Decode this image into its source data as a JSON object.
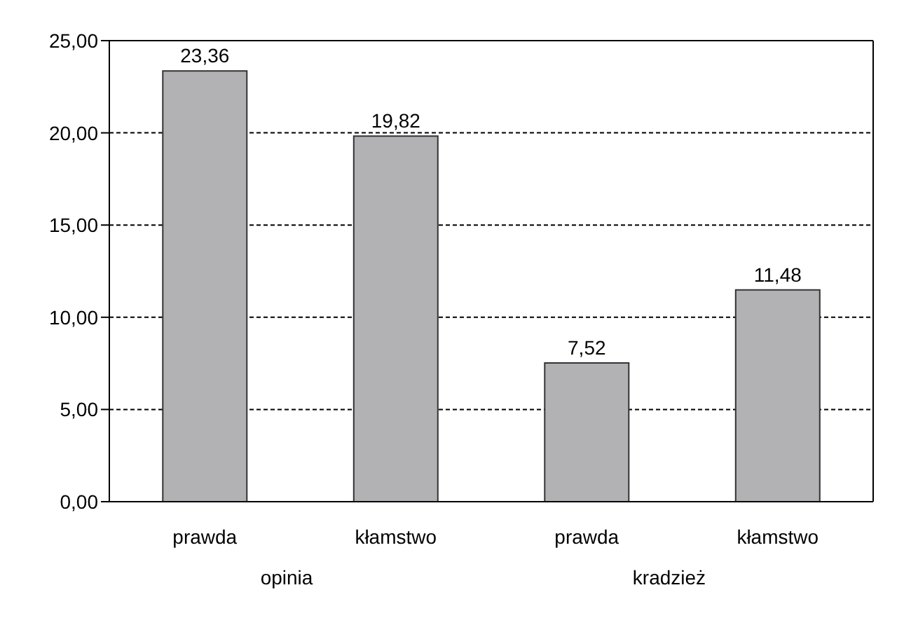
{
  "chart_data": {
    "type": "bar",
    "categories": [
      "prawda",
      "kłamstwo",
      "prawda",
      "kłamstwo"
    ],
    "values": [
      23.36,
      19.82,
      7.52,
      11.48
    ],
    "value_labels": [
      "23,36",
      "19,82",
      "7,52",
      "11,48"
    ],
    "color": "#b2b2b4",
    "ylim": [
      0,
      25
    ],
    "yticks": [
      {
        "value": 0,
        "label": "0,00"
      },
      {
        "value": 5,
        "label": "5,00"
      },
      {
        "value": 10,
        "label": "10,00"
      },
      {
        "value": 15,
        "label": "15,00"
      },
      {
        "value": 20,
        "label": "20,00"
      },
      {
        "value": 25,
        "label": "25,00"
      }
    ],
    "grid": "y",
    "annotations": [
      "opinia",
      "kradzież"
    ]
  }
}
